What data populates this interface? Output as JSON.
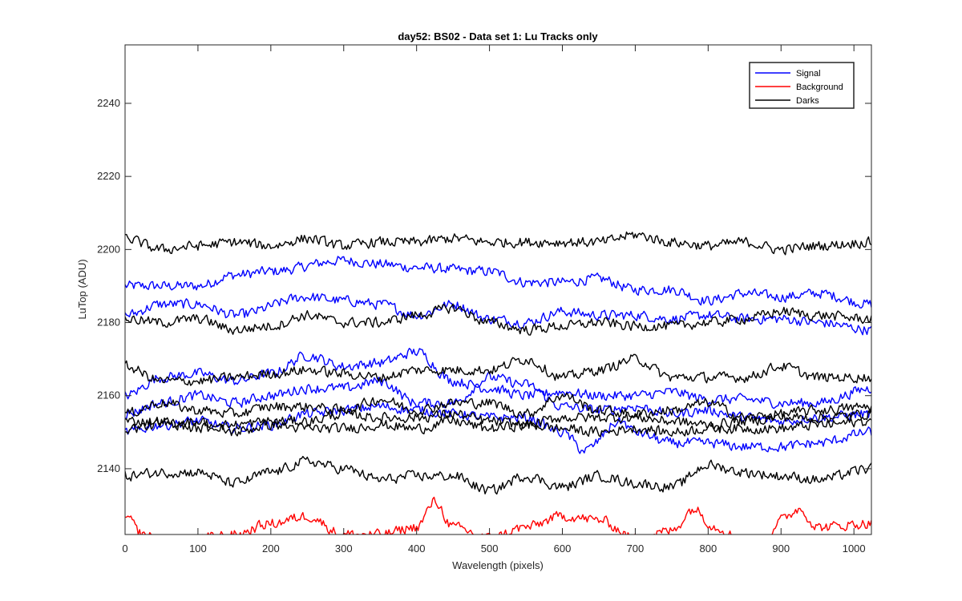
{
  "chart_data": {
    "type": "line",
    "title": "day52: BS02 - Data set 1: Lu Tracks only",
    "xlabel": "Wavelength (pixels)",
    "ylabel": "LuTop (ADU)",
    "xlim": [
      0,
      1024
    ],
    "ylim": [
      2122,
      2256
    ],
    "xticks": [
      0,
      100,
      200,
      300,
      400,
      500,
      600,
      700,
      800,
      900,
      1000
    ],
    "yticks": [
      2140,
      2160,
      2180,
      2200,
      2220,
      2240
    ],
    "grid": false,
    "legend_position": "top-right",
    "legend": [
      {
        "name": "Signal",
        "color": "#0000ff"
      },
      {
        "name": "Background",
        "color": "#ff0000"
      },
      {
        "name": "Darks",
        "color": "#000000"
      }
    ],
    "series": [
      {
        "group": "Signal",
        "color": "#0000ff",
        "x": [
          0,
          100,
          150,
          200,
          300,
          350,
          400,
          500,
          550,
          600,
          650,
          700,
          750,
          800,
          850,
          900,
          950,
          1024
        ],
        "values": [
          2190,
          2190,
          2193,
          2194,
          2197,
          2196,
          2195,
          2194,
          2191,
          2191,
          2192,
          2189,
          2189,
          2186,
          2188,
          2187,
          2188,
          2185
        ]
      },
      {
        "group": "Signal",
        "color": "#0000ff",
        "x": [
          0,
          50,
          100,
          150,
          250,
          300,
          350,
          400,
          450,
          500,
          550,
          600,
          650,
          700,
          750,
          800,
          850,
          900,
          950,
          1024
        ],
        "values": [
          2182,
          2185,
          2185,
          2182,
          2187,
          2186,
          2185,
          2182,
          2185,
          2181,
          2180,
          2183,
          2182,
          2182,
          2181,
          2182,
          2181,
          2181,
          2180,
          2178
        ]
      },
      {
        "group": "Signal",
        "color": "#0000ff",
        "x": [
          0,
          50,
          100,
          150,
          200,
          250,
          300,
          350,
          400,
          450,
          500,
          550,
          600,
          650,
          700,
          750,
          800,
          850,
          900,
          950,
          1024
        ],
        "values": [
          2160,
          2165,
          2166,
          2164,
          2166,
          2171,
          2168,
          2169,
          2172,
          2164,
          2162,
          2160,
          2161,
          2160,
          2160,
          2161,
          2159,
          2159,
          2158,
          2158,
          2162
        ]
      },
      {
        "group": "Signal",
        "color": "#0000ff",
        "x": [
          0,
          50,
          100,
          150,
          200,
          250,
          300,
          350,
          400,
          450,
          500,
          550,
          600,
          650,
          700,
          750,
          800,
          850,
          900,
          950,
          1024
        ],
        "values": [
          2155,
          2158,
          2160,
          2158,
          2160,
          2162,
          2162,
          2164,
          2158,
          2158,
          2165,
          2163,
          2157,
          2156,
          2157,
          2155,
          2156,
          2154,
          2153,
          2154,
          2155
        ]
      },
      {
        "group": "Signal",
        "color": "#0000ff",
        "x": [
          0,
          50,
          100,
          150,
          200,
          250,
          300,
          350,
          400,
          450,
          500,
          550,
          600,
          630,
          680,
          700,
          750,
          800,
          850,
          900,
          950,
          1024
        ],
        "values": [
          2150,
          2152,
          2153,
          2151,
          2152,
          2155,
          2156,
          2157,
          2156,
          2155,
          2154,
          2154,
          2150,
          2145,
          2153,
          2150,
          2147,
          2147,
          2146,
          2146,
          2147,
          2150
        ]
      },
      {
        "group": "Darks",
        "color": "#000000",
        "x": [
          0,
          50,
          100,
          150,
          200,
          250,
          300,
          350,
          400,
          450,
          500,
          550,
          600,
          650,
          700,
          750,
          800,
          850,
          900,
          950,
          1024
        ],
        "values": [
          2203,
          2200,
          2201,
          2202,
          2201,
          2203,
          2201,
          2202,
          2202,
          2203,
          2202,
          2202,
          2202,
          2202,
          2204,
          2202,
          2201,
          2202,
          2200,
          2201,
          2202
        ]
      },
      {
        "group": "Darks",
        "color": "#000000",
        "x": [
          0,
          50,
          100,
          150,
          200,
          250,
          300,
          350,
          400,
          450,
          500,
          550,
          600,
          650,
          700,
          750,
          800,
          850,
          900,
          950,
          1024
        ],
        "values": [
          2181,
          2180,
          2181,
          2178,
          2179,
          2182,
          2180,
          2180,
          2182,
          2184,
          2180,
          2178,
          2179,
          2180,
          2179,
          2179,
          2180,
          2181,
          2183,
          2182,
          2181
        ]
      },
      {
        "group": "Darks",
        "color": "#000000",
        "x": [
          0,
          50,
          100,
          150,
          200,
          250,
          300,
          350,
          400,
          450,
          500,
          550,
          600,
          650,
          700,
          750,
          800,
          850,
          900,
          950,
          1024
        ],
        "values": [
          2168,
          2164,
          2164,
          2165,
          2166,
          2167,
          2166,
          2165,
          2167,
          2167,
          2167,
          2170,
          2165,
          2167,
          2170,
          2165,
          2165,
          2165,
          2168,
          2165,
          2165
        ]
      },
      {
        "group": "Darks",
        "color": "#000000",
        "x": [
          0,
          50,
          100,
          150,
          200,
          250,
          300,
          350,
          400,
          450,
          500,
          550,
          600,
          650,
          700,
          750,
          800,
          850,
          900,
          950,
          1024
        ],
        "values": [
          2155,
          2158,
          2156,
          2155,
          2157,
          2157,
          2156,
          2159,
          2156,
          2158,
          2158,
          2155,
          2160,
          2156,
          2155,
          2156,
          2158,
          2154,
          2155,
          2156,
          2157
        ]
      },
      {
        "group": "Darks",
        "color": "#000000",
        "x": [
          0,
          50,
          100,
          150,
          200,
          250,
          300,
          350,
          400,
          450,
          500,
          550,
          600,
          650,
          700,
          750,
          800,
          850,
          900,
          950,
          1024
        ],
        "values": [
          2153,
          2153,
          2151,
          2152,
          2153,
          2153,
          2155,
          2154,
          2154,
          2155,
          2153,
          2152,
          2154,
          2154,
          2154,
          2153,
          2152,
          2153,
          2154,
          2154,
          2155
        ]
      },
      {
        "group": "Darks",
        "color": "#000000",
        "x": [
          0,
          50,
          100,
          150,
          200,
          250,
          300,
          350,
          400,
          450,
          500,
          550,
          600,
          650,
          700,
          750,
          800,
          850,
          900,
          950,
          1024
        ],
        "values": [
          2151,
          2152,
          2153,
          2150,
          2152,
          2151,
          2151,
          2152,
          2151,
          2153,
          2151,
          2152,
          2151,
          2150,
          2151,
          2150,
          2151,
          2151,
          2151,
          2152,
          2153
        ]
      },
      {
        "group": "Darks",
        "color": "#000000",
        "x": [
          0,
          50,
          100,
          150,
          200,
          250,
          300,
          350,
          400,
          450,
          500,
          550,
          600,
          650,
          700,
          750,
          800,
          850,
          900,
          950,
          1024
        ],
        "values": [
          2138,
          2139,
          2139,
          2136,
          2139,
          2142,
          2140,
          2137,
          2138,
          2138,
          2134,
          2138,
          2135,
          2138,
          2136,
          2135,
          2141,
          2139,
          2138,
          2137,
          2140
        ]
      },
      {
        "group": "Background",
        "color": "#ff0000",
        "x": [
          0,
          25,
          50,
          100,
          150,
          200,
          250,
          300,
          350,
          400,
          425,
          450,
          500,
          550,
          600,
          650,
          700,
          750,
          780,
          810,
          850,
          875,
          900,
          925,
          950,
          1024
        ],
        "values": [
          2127,
          2122,
          2120,
          2121,
          2122,
          2125,
          2127,
          2122,
          2122,
          2124,
          2131,
          2124,
          2121,
          2124,
          2127,
          2126,
          2121,
          2123,
          2129,
          2124,
          2120,
          2120,
          2126,
          2129,
          2124,
          2125
        ]
      }
    ]
  }
}
